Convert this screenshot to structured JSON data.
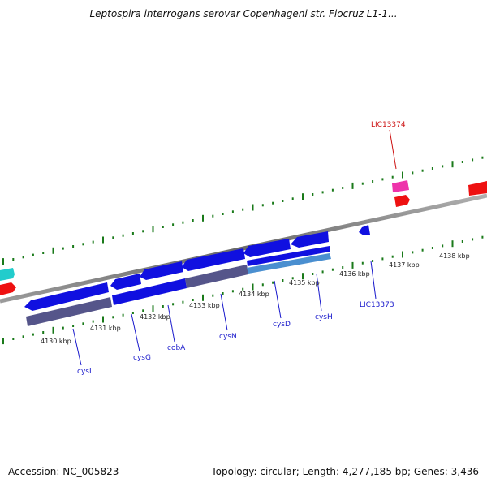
{
  "title": "Leptospira interrogans serovar Copenhageni str. Fiocruz L1-1...",
  "footer": {
    "accession": "Accession: NC_005823",
    "summary": "Topology: circular; Length: 4,277,185 bp; Genes: 3,436"
  },
  "colors": {
    "backbone": "#7a7a7a",
    "cds_dark": "#1010e0",
    "gene_purple": "#55558a",
    "gene_blue_light": "#4a8fd0",
    "tick_green": "#1a7a1a",
    "label_blue": "#1a1acc",
    "label_red": "#cc1111",
    "cds_red": "#ee1111",
    "cds_pink": "#ee33aa",
    "cds_cyan": "#22cccc"
  },
  "kbp_labels": [
    "4130 kbp",
    "4131 kbp",
    "4132 kbp",
    "4133 kbp",
    "4134 kbp",
    "4135 kbp",
    "4136 kbp",
    "4137 kbp",
    "4138 kbp"
  ],
  "genes": [
    {
      "name": "cysI",
      "color": "label_blue"
    },
    {
      "name": "cysG",
      "color": "label_blue"
    },
    {
      "name": "cobA",
      "color": "label_blue"
    },
    {
      "name": "cysN",
      "color": "label_blue"
    },
    {
      "name": "cysD",
      "color": "label_blue"
    },
    {
      "name": "cysH",
      "color": "label_blue"
    },
    {
      "name": "LIC13373",
      "color": "label_blue"
    },
    {
      "name": "LIC13374",
      "color": "label_red"
    }
  ]
}
